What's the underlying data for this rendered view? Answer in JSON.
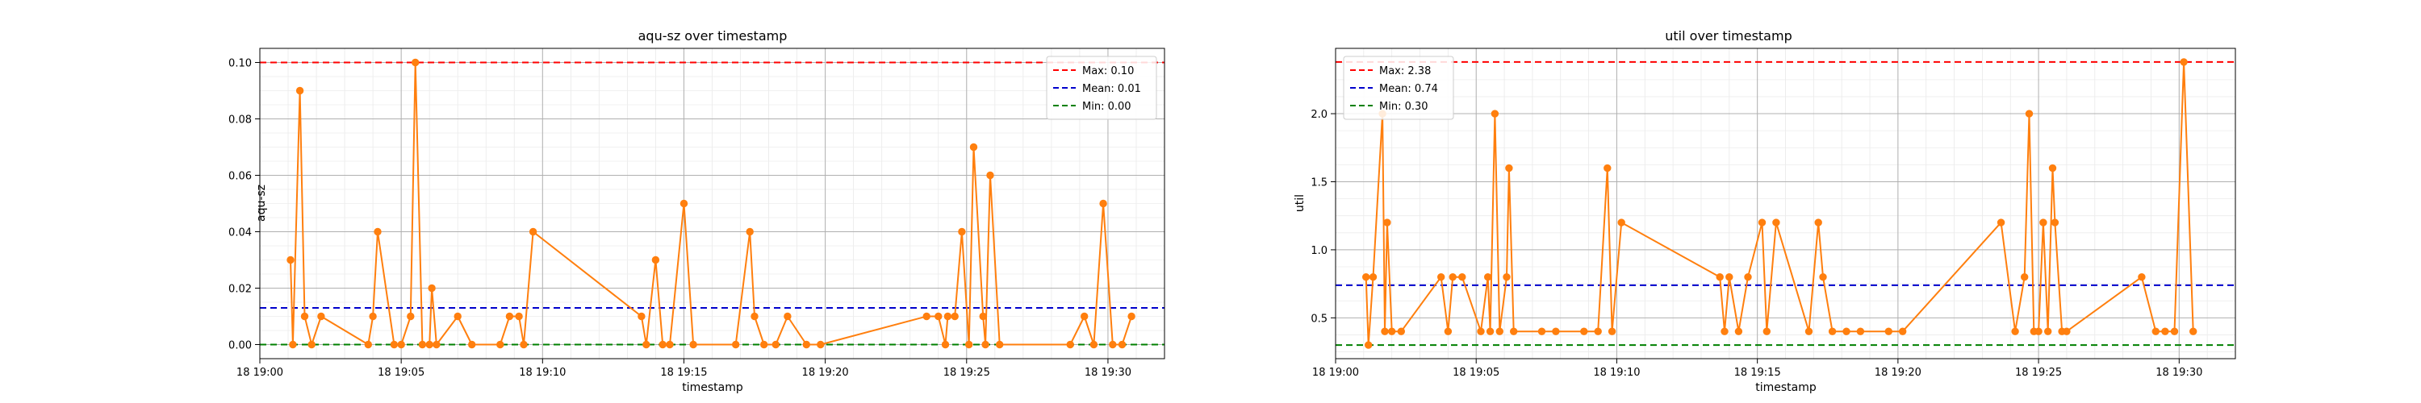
{
  "chart_data": [
    {
      "type": "line",
      "title": "aqu-sz over timestamp",
      "xlabel": "timestamp",
      "ylabel": "aqu-sz",
      "xlim": [
        "19:00:00",
        "19:32:00"
      ],
      "ylim": [
        -0.005,
        0.105
      ],
      "x_tick_labels": [
        "18 19:00",
        "18 19:05",
        "18 19:10",
        "18 19:15",
        "18 19:20",
        "18 19:25",
        "18 19:30"
      ],
      "y_tick_labels": [
        "0.00",
        "0.02",
        "0.04",
        "0.06",
        "0.08",
        "0.10"
      ],
      "y_ticks": [
        0,
        0.02,
        0.04,
        0.06,
        0.08,
        0.1
      ],
      "grid": true,
      "legend_position": "top-right",
      "series": {
        "color": "#ff7f0e",
        "x": [
          "19:01:05",
          "19:01:10",
          "19:01:25",
          "19:01:35",
          "19:01:50",
          "19:02:10",
          "19:03:50",
          "19:04:00",
          "19:04:10",
          "19:04:45",
          "19:05:00",
          "19:05:20",
          "19:05:30",
          "19:05:45",
          "19:06:00",
          "19:06:05",
          "19:06:15",
          "19:07:00",
          "19:07:30",
          "19:08:30",
          "19:08:50",
          "19:09:10",
          "19:09:20",
          "19:09:40",
          "19:13:30",
          "19:13:40",
          "19:14:00",
          "19:14:15",
          "19:14:30",
          "19:15:00",
          "19:15:20",
          "19:16:50",
          "19:17:20",
          "19:17:30",
          "19:17:50",
          "19:18:15",
          "19:18:40",
          "19:19:20",
          "19:19:50",
          "19:23:35",
          "19:24:00",
          "19:24:15",
          "19:24:20",
          "19:24:35",
          "19:24:50",
          "19:25:05",
          "19:25:15",
          "19:25:35",
          "19:25:40",
          "19:25:50",
          "19:26:10",
          "19:28:40",
          "19:29:10",
          "19:29:30",
          "19:29:50",
          "19:30:10",
          "19:30:30",
          "19:30:50"
        ],
        "y": [
          0.03,
          0.0,
          0.09,
          0.01,
          0.0,
          0.01,
          0.0,
          0.01,
          0.04,
          0.0,
          0.0,
          0.01,
          0.1,
          0.0,
          0.0,
          0.02,
          0.0,
          0.01,
          0.0,
          0.0,
          0.01,
          0.01,
          0.0,
          0.04,
          0.01,
          0.0,
          0.03,
          0.0,
          0.0,
          0.05,
          0.0,
          0.0,
          0.04,
          0.01,
          0.0,
          0.0,
          0.01,
          0.0,
          0.0,
          0.01,
          0.01,
          0.0,
          0.01,
          0.01,
          0.04,
          0.0,
          0.07,
          0.01,
          0.0,
          0.06,
          0.0,
          0.0,
          0.01,
          0.0,
          0.05,
          0.0,
          0.0,
          0.01
        ]
      },
      "reference_lines": [
        {
          "label": "Max: 0.10",
          "value": 0.1,
          "color": "#ff0000"
        },
        {
          "label": "Mean: 0.01",
          "value": 0.013,
          "color": "#0000cc"
        },
        {
          "label": "Min: 0.00",
          "value": 0.0,
          "color": "#008000"
        }
      ]
    },
    {
      "type": "line",
      "title": "util over timestamp",
      "xlabel": "timestamp",
      "ylabel": "util",
      "xlim": [
        "19:00:00",
        "19:32:00"
      ],
      "ylim": [
        0.2,
        2.48
      ],
      "x_tick_labels": [
        "18 19:00",
        "18 19:05",
        "18 19:10",
        "18 19:15",
        "18 19:20",
        "18 19:25",
        "18 19:30"
      ],
      "y_tick_labels": [
        "0.5",
        "1.0",
        "1.5",
        "2.0"
      ],
      "y_ticks": [
        0.5,
        1.0,
        1.5,
        2.0
      ],
      "grid": true,
      "legend_position": "top-left",
      "series": {
        "color": "#ff7f0e",
        "x": [
          "19:01:05",
          "19:01:10",
          "19:01:20",
          "19:01:40",
          "19:01:45",
          "19:01:50",
          "19:02:00",
          "19:02:20",
          "19:03:45",
          "19:04:00",
          "19:04:10",
          "19:04:30",
          "19:05:10",
          "19:05:25",
          "19:05:30",
          "19:05:40",
          "19:05:50",
          "19:06:05",
          "19:06:10",
          "19:06:20",
          "19:07:20",
          "19:07:50",
          "19:08:50",
          "19:09:20",
          "19:09:40",
          "19:09:50",
          "19:10:10",
          "19:13:40",
          "19:13:50",
          "19:14:00",
          "19:14:20",
          "19:14:40",
          "19:15:10",
          "19:15:20",
          "19:15:40",
          "19:16:50",
          "19:17:10",
          "19:17:20",
          "19:17:40",
          "19:18:10",
          "19:18:40",
          "19:19:40",
          "19:20:10",
          "19:23:40",
          "19:24:10",
          "19:24:30",
          "19:24:40",
          "19:24:50",
          "19:25:00",
          "19:25:10",
          "19:25:20",
          "19:25:30",
          "19:25:35",
          "19:25:50",
          "19:26:00",
          "19:28:40",
          "19:29:10",
          "19:29:30",
          "19:29:50",
          "19:30:10",
          "19:30:30"
        ],
        "y": [
          0.8,
          0.3,
          0.8,
          2.0,
          0.4,
          1.2,
          0.4,
          0.4,
          0.8,
          0.4,
          0.8,
          0.8,
          0.4,
          0.8,
          0.4,
          2.0,
          0.4,
          0.8,
          1.6,
          0.4,
          0.4,
          0.4,
          0.4,
          0.4,
          1.6,
          0.4,
          1.2,
          0.8,
          0.4,
          0.8,
          0.4,
          0.8,
          1.2,
          0.4,
          1.2,
          0.4,
          1.2,
          0.8,
          0.4,
          0.4,
          0.4,
          0.4,
          0.4,
          1.2,
          0.4,
          0.8,
          2.0,
          0.4,
          0.4,
          1.2,
          0.4,
          1.6,
          1.2,
          0.4,
          0.4,
          0.8,
          0.4,
          0.4,
          0.4,
          2.38,
          0.4
        ]
      },
      "reference_lines": [
        {
          "label": "Max: 2.38",
          "value": 2.38,
          "color": "#ff0000"
        },
        {
          "label": "Mean: 0.74",
          "value": 0.74,
          "color": "#0000cc"
        },
        {
          "label": "Min: 0.30",
          "value": 0.3,
          "color": "#008000"
        }
      ]
    }
  ]
}
